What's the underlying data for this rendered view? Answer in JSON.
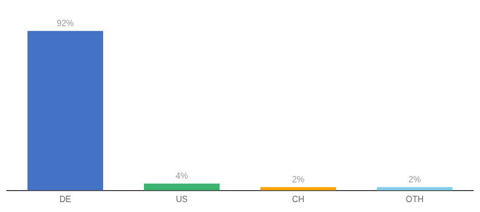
{
  "chart_data": {
    "type": "bar",
    "categories": [
      "DE",
      "US",
      "CH",
      "OTH"
    ],
    "values": [
      92,
      4,
      2,
      2
    ],
    "value_labels": [
      "92%",
      "4%",
      "2%",
      "2%"
    ],
    "colors": [
      "#4472C4",
      "#3CB371",
      "#FFA500",
      "#87CEEB"
    ],
    "ylim": [
      0,
      100
    ],
    "grid": false,
    "data_labels": true,
    "tick_labels": "x"
  }
}
